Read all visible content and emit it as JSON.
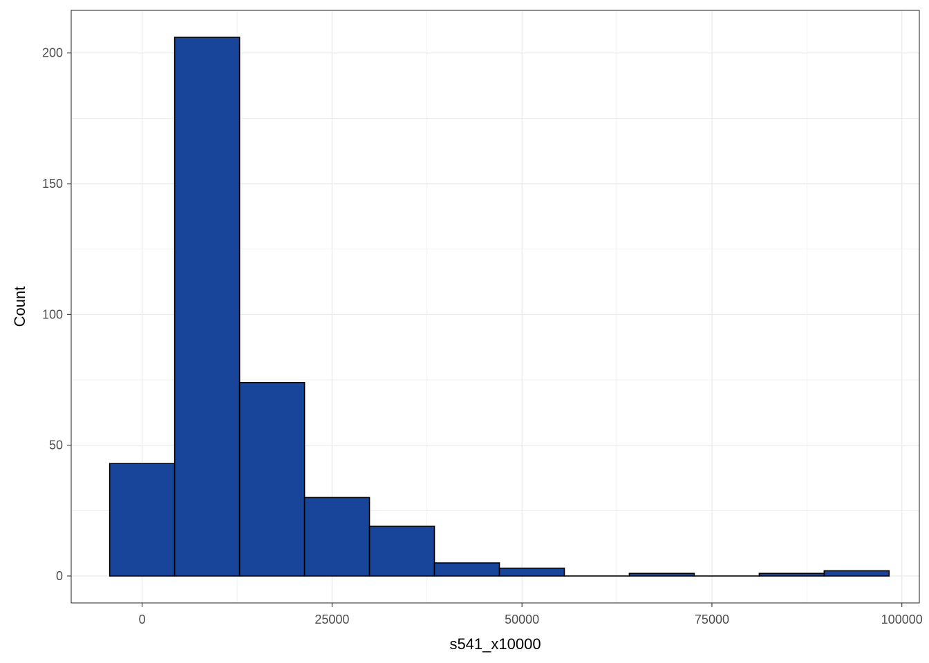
{
  "chart_data": {
    "type": "bar",
    "subtype": "histogram",
    "title": "",
    "xlabel": "s541_x10000",
    "ylabel": "Count",
    "bin_width": 8550,
    "bins": [
      {
        "x_start": -4275,
        "x_end": 4275,
        "count": 43
      },
      {
        "x_start": 4275,
        "x_end": 12825,
        "count": 206
      },
      {
        "x_start": 12825,
        "x_end": 21375,
        "count": 74
      },
      {
        "x_start": 21375,
        "x_end": 29925,
        "count": 30
      },
      {
        "x_start": 29925,
        "x_end": 38475,
        "count": 19
      },
      {
        "x_start": 38475,
        "x_end": 47025,
        "count": 5
      },
      {
        "x_start": 47025,
        "x_end": 55575,
        "count": 3
      },
      {
        "x_start": 55575,
        "x_end": 64125,
        "count": 0
      },
      {
        "x_start": 64125,
        "x_end": 72675,
        "count": 1
      },
      {
        "x_start": 72675,
        "x_end": 81225,
        "count": 0
      },
      {
        "x_start": 81225,
        "x_end": 89775,
        "count": 1
      },
      {
        "x_start": 89775,
        "x_end": 98325,
        "count": 2
      }
    ],
    "xlim": [
      -9340,
      102300
    ],
    "ylim": [
      -10.3,
      216.3
    ],
    "x_ticks": [
      {
        "value": 0,
        "label": "0"
      },
      {
        "value": 25000,
        "label": "25000"
      },
      {
        "value": 50000,
        "label": "50000"
      },
      {
        "value": 75000,
        "label": "75000"
      },
      {
        "value": 100000,
        "label": "100000"
      }
    ],
    "y_ticks": [
      {
        "value": 0,
        "label": "0"
      },
      {
        "value": 50,
        "label": "50"
      },
      {
        "value": 100,
        "label": "100"
      },
      {
        "value": 150,
        "label": "150"
      },
      {
        "value": 200,
        "label": "200"
      }
    ],
    "fill_color": "#18449A",
    "edge_color": "#000000",
    "grid": true,
    "grid_color": "#EBEBEB",
    "panel_border_color": "#333333",
    "legend": "none"
  }
}
